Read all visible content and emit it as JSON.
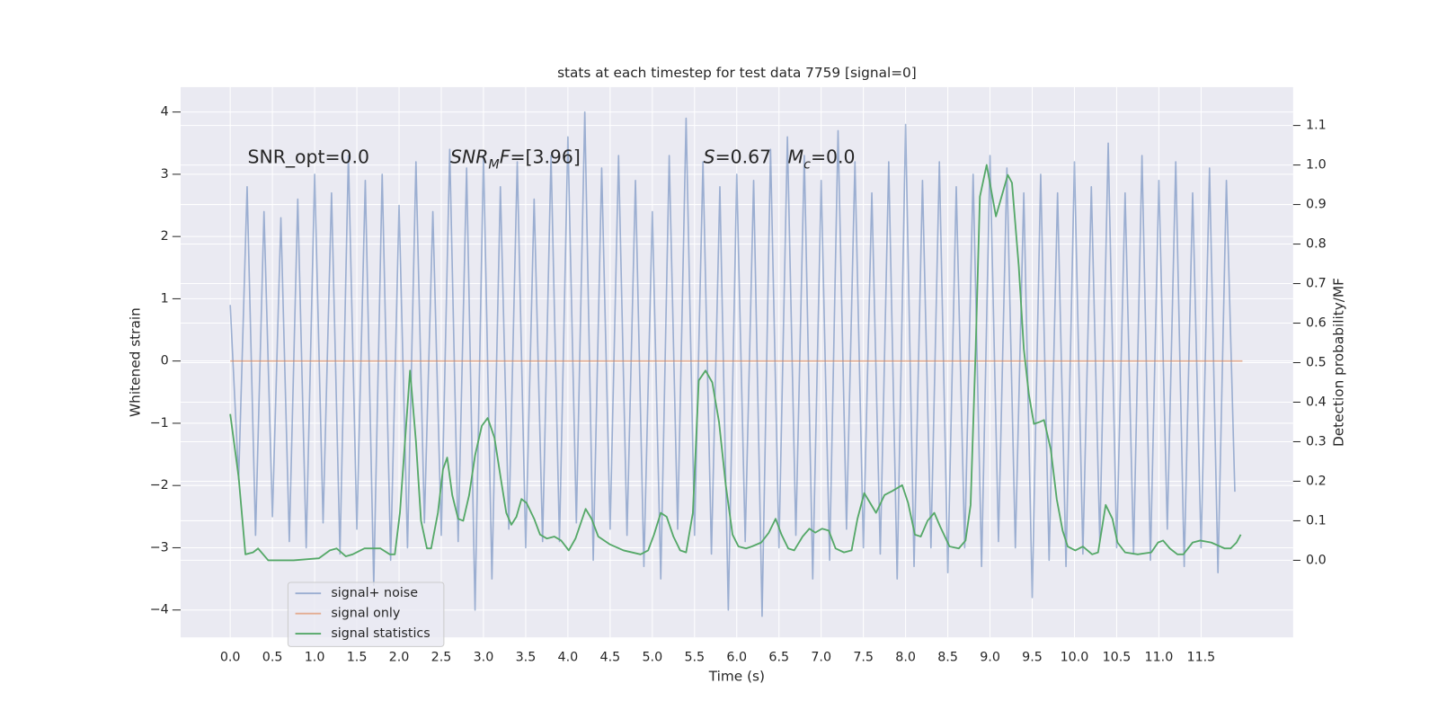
{
  "chart_data": {
    "type": "line",
    "title": "stats at each timestep for test data 7759 [signal=0]",
    "xlabel": "Time (s)",
    "ylabel": "Whitened strain",
    "y2label": "Detection probability/MF",
    "annotations": [
      [
        {
          "text": "SNR_opt=0.0"
        }
      ],
      [
        {
          "text": "SNR",
          "style": "italic"
        },
        {
          "text": "M",
          "style": "sub"
        },
        {
          "text": "F",
          "style": "italic"
        },
        {
          "text": "=[3.96]"
        }
      ],
      [
        {
          "text": "S",
          "style": "italic"
        },
        {
          "text": "=0.67"
        }
      ],
      [
        {
          "text": "M",
          "style": "italic"
        },
        {
          "text": "c",
          "style": "sub"
        },
        {
          "text": "=0.0"
        }
      ]
    ],
    "grid": true,
    "xlim": [
      -0.587,
      12.59
    ],
    "ylim": [
      -4.44,
      4.4
    ],
    "y2lim": [
      -0.195,
      1.197
    ],
    "xticks": [
      {
        "value": 0,
        "label": "0.0"
      },
      0.5,
      {
        "value": 1,
        "label": "1.0"
      },
      1.5,
      {
        "value": 2,
        "label": "2.0"
      },
      2.5,
      {
        "value": 3,
        "label": "3.0"
      },
      3.5,
      {
        "value": 4,
        "label": "4.0"
      },
      4.5,
      {
        "value": 5,
        "label": "5.0"
      },
      5.5,
      {
        "value": 6,
        "label": "6.0"
      },
      6.5,
      {
        "value": 7,
        "label": "7.0"
      },
      7.5,
      {
        "value": 8,
        "label": "8.0"
      },
      8.5,
      {
        "value": 9,
        "label": "9.0"
      },
      9.5,
      {
        "value": 10,
        "label": "10.0"
      },
      10.5,
      {
        "value": 11,
        "label": "11.0"
      },
      11.5
    ],
    "yticks": [
      {
        "value": -4,
        "label": "−4"
      },
      {
        "value": -3,
        "label": "−3"
      },
      {
        "value": -2,
        "label": "−2"
      },
      {
        "value": -1,
        "label": "−1"
      },
      0,
      1,
      2,
      3,
      4
    ],
    "y2ticks": [
      {
        "value": 0,
        "label": "0.0"
      },
      0.1,
      0.2,
      0.3,
      0.4,
      0.5,
      0.6,
      0.7,
      0.8,
      0.9,
      {
        "value": 1,
        "label": "1.0"
      },
      1.1
    ],
    "series": [
      {
        "name": "signal+ noise",
        "color": "#4c72b0",
        "x": [
          0,
          0.1,
          0.2,
          0.3,
          0.4,
          0.5,
          0.6,
          0.7,
          0.8,
          0.9,
          1,
          1.1,
          1.2,
          1.3,
          1.4,
          1.5,
          1.6,
          1.7,
          1.8,
          1.9,
          2,
          2.1,
          2.2,
          2.3,
          2.4,
          2.5,
          2.6,
          2.7,
          2.8,
          2.9,
          3,
          3.1,
          3.2,
          3.3,
          3.4,
          3.5,
          3.6,
          3.7,
          3.8,
          3.9,
          4,
          4.1,
          4.2,
          4.3,
          4.4,
          4.5,
          4.6,
          4.7,
          4.8,
          4.9,
          5,
          5.1,
          5.2,
          5.3,
          5.4,
          5.5,
          5.6,
          5.7,
          5.8,
          5.9,
          6,
          6.1,
          6.2,
          6.3,
          6.4,
          6.5,
          6.6,
          6.7,
          6.8,
          6.9,
          7,
          7.1,
          7.2,
          7.3,
          7.4,
          7.5,
          7.6,
          7.7,
          7.8,
          7.9,
          8,
          8.1,
          8.2,
          8.3,
          8.4,
          8.5,
          8.6,
          8.7,
          8.8,
          8.9,
          9,
          9.1,
          9.2,
          9.3,
          9.4,
          9.5,
          9.6,
          9.7,
          9.8,
          9.9,
          10,
          10.1,
          10.2,
          10.3,
          10.4,
          10.5,
          10.6,
          10.7,
          10.8,
          10.9,
          11,
          11.1,
          11.2,
          11.3,
          11.4,
          11.5,
          11.6,
          11.7,
          11.8,
          11.9
        ],
        "values": [
          0.9,
          -1.9,
          2.8,
          -2.8,
          2.4,
          -2.5,
          2.3,
          -2.9,
          2.6,
          -3.0,
          3.0,
          -2.6,
          2.7,
          -3.1,
          3.3,
          -2.7,
          2.9,
          -3.6,
          3.0,
          -3.2,
          2.5,
          -3.0,
          3.2,
          -2.6,
          2.4,
          -2.8,
          3.4,
          -2.9,
          3.1,
          -4.0,
          3.3,
          -3.5,
          2.8,
          -2.7,
          3.2,
          -3.0,
          2.6,
          -2.9,
          3.3,
          -2.9,
          3.6,
          -2.6,
          4.0,
          -3.2,
          3.1,
          -2.7,
          3.3,
          -2.8,
          2.9,
          -3.3,
          2.4,
          -3.5,
          3.3,
          -2.7,
          3.9,
          -2.8,
          3.2,
          -3.1,
          2.8,
          -4.0,
          3.0,
          -2.9,
          2.9,
          -4.1,
          3.4,
          -3.0,
          3.6,
          -2.8,
          3.3,
          -3.5,
          2.9,
          -3.2,
          3.7,
          -2.7,
          3.2,
          -3.0,
          2.7,
          -3.1,
          3.2,
          -3.5,
          3.8,
          -3.3,
          2.9,
          -3.0,
          3.2,
          -3.4,
          2.8,
          -3.0,
          3.0,
          -3.3,
          3.3,
          -2.9,
          3.1,
          -3.0,
          2.7,
          -3.8,
          3.0,
          -3.2,
          2.7,
          -3.3,
          3.2,
          -3.1,
          2.8,
          -2.9,
          3.5,
          -3.0,
          2.7,
          -3.1,
          3.3,
          -3.2,
          2.9,
          -2.7,
          3.2,
          -3.3,
          2.7,
          -3.0,
          3.1,
          -3.4,
          2.9,
          -2.1
        ]
      },
      {
        "name": "signal only",
        "color": "#dd8452",
        "x": [
          0,
          11.99
        ],
        "values": [
          0,
          0
        ]
      },
      {
        "name": "signal statistics",
        "color": "#55a868",
        "axis": "y2",
        "x": [
          0,
          0.1,
          0.18,
          0.27,
          0.33,
          0.45,
          0.75,
          1.05,
          1.18,
          1.26,
          1.37,
          1.45,
          1.59,
          1.78,
          1.89,
          1.95,
          2.01,
          2.07,
          2.13,
          2.2,
          2.26,
          2.33,
          2.38,
          2.46,
          2.52,
          2.57,
          2.63,
          2.7,
          2.76,
          2.83,
          2.9,
          2.98,
          3.05,
          3.13,
          3.21,
          3.27,
          3.33,
          3.39,
          3.45,
          3.51,
          3.6,
          3.67,
          3.75,
          3.84,
          3.92,
          4.01,
          4.09,
          4.21,
          4.28,
          4.36,
          4.5,
          4.66,
          4.86,
          4.95,
          5.02,
          5.1,
          5.17,
          5.25,
          5.33,
          5.4,
          5.48,
          5.55,
          5.63,
          5.71,
          5.79,
          5.87,
          5.95,
          6.02,
          6.11,
          6.18,
          6.29,
          6.38,
          6.46,
          6.53,
          6.61,
          6.68,
          6.78,
          6.86,
          6.93,
          7.01,
          7.09,
          7.17,
          7.27,
          7.36,
          7.43,
          7.51,
          7.58,
          7.65,
          7.75,
          7.84,
          7.96,
          8.03,
          8.11,
          8.18,
          8.26,
          8.34,
          8.41,
          8.52,
          8.63,
          8.71,
          8.77,
          8.83,
          8.88,
          8.96,
          9.07,
          9.21,
          9.26,
          9.34,
          9.4,
          9.46,
          9.52,
          9.59,
          9.64,
          9.72,
          9.79,
          9.86,
          9.92,
          10.01,
          10.1,
          10.21,
          10.28,
          10.37,
          10.45,
          10.51,
          10.6,
          10.75,
          10.91,
          10.99,
          11.05,
          11.13,
          11.22,
          11.29,
          11.4,
          11.49,
          11.62,
          11.78,
          11.85,
          11.92,
          11.97
        ],
        "values": [
          0.37,
          0.21,
          0.015,
          0.02,
          0.03,
          0.0,
          0.0,
          0.005,
          0.025,
          0.03,
          0.01,
          0.015,
          0.03,
          0.03,
          0.015,
          0.015,
          0.12,
          0.3,
          0.48,
          0.3,
          0.1,
          0.03,
          0.03,
          0.12,
          0.23,
          0.26,
          0.165,
          0.105,
          0.1,
          0.165,
          0.265,
          0.34,
          0.36,
          0.31,
          0.2,
          0.12,
          0.09,
          0.11,
          0.155,
          0.145,
          0.105,
          0.065,
          0.055,
          0.06,
          0.05,
          0.025,
          0.055,
          0.13,
          0.105,
          0.06,
          0.04,
          0.025,
          0.015,
          0.025,
          0.065,
          0.12,
          0.11,
          0.06,
          0.025,
          0.02,
          0.12,
          0.455,
          0.48,
          0.45,
          0.35,
          0.19,
          0.065,
          0.035,
          0.03,
          0.035,
          0.045,
          0.07,
          0.105,
          0.065,
          0.03,
          0.025,
          0.06,
          0.08,
          0.07,
          0.08,
          0.075,
          0.03,
          0.02,
          0.025,
          0.105,
          0.17,
          0.145,
          0.12,
          0.165,
          0.175,
          0.19,
          0.145,
          0.065,
          0.06,
          0.1,
          0.12,
          0.085,
          0.035,
          0.03,
          0.05,
          0.14,
          0.535,
          0.92,
          1.0,
          0.87,
          0.975,
          0.955,
          0.745,
          0.535,
          0.42,
          0.345,
          0.35,
          0.355,
          0.28,
          0.155,
          0.075,
          0.035,
          0.025,
          0.035,
          0.015,
          0.02,
          0.14,
          0.105,
          0.045,
          0.02,
          0.015,
          0.02,
          0.045,
          0.05,
          0.03,
          0.015,
          0.015,
          0.045,
          0.05,
          0.045,
          0.03,
          0.03,
          0.045,
          0.065
        ]
      }
    ]
  }
}
